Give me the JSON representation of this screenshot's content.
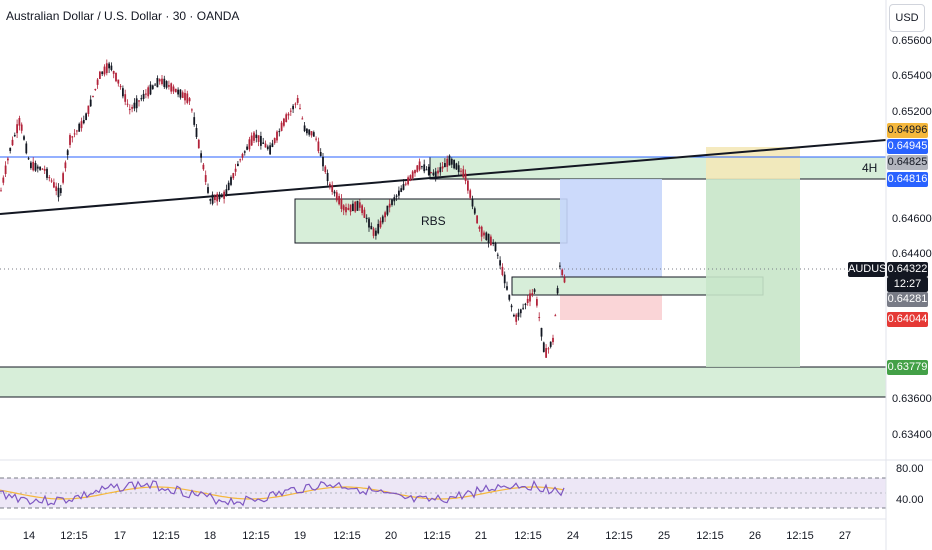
{
  "header": {
    "title": "Australian Dollar / U.S. Dollar · 30 · OANDA",
    "currency": "USD"
  },
  "price_axis": {
    "labels": [
      "0.65600",
      "0.65400",
      "0.65200",
      "0.64600",
      "0.64400",
      "0.63600",
      "0.63400"
    ]
  },
  "tags": {
    "t1": {
      "text": "0.64996",
      "bg": "#f5b83d",
      "fg": "#131722"
    },
    "t2": {
      "text": "0.64945",
      "bg": "#2962ff",
      "fg": "#ffffff"
    },
    "t3": {
      "text": "0.64825",
      "bg": "#b2b5be",
      "fg": "#131722"
    },
    "t4": {
      "text": "0.64816",
      "bg": "#2962ff",
      "fg": "#ffffff"
    },
    "t5": {
      "text": "0.64322",
      "bg": "#131722",
      "fg": "#ffffff"
    },
    "t6": {
      "text": "12:27",
      "bg": "#131722",
      "fg": "#ffffff"
    },
    "t7": {
      "text": "0.64281",
      "bg": "#787b86",
      "fg": "#ffffff"
    },
    "t8": {
      "text": "0.64044",
      "bg": "#e53935",
      "fg": "#ffffff"
    },
    "t9": {
      "text": "0.63779",
      "bg": "#43a047",
      "fg": "#ffffff"
    }
  },
  "symbol_tag": "AUDUSD",
  "annotations": {
    "rbs": "RBS",
    "four_h": "4H"
  },
  "time_axis": [
    "14",
    "12:15",
    "17",
    "12:15",
    "18",
    "12:15",
    "19",
    "12:15",
    "20",
    "12:15",
    "21",
    "12:15",
    "24",
    "12:15",
    "25",
    "12:15",
    "26",
    "12:15",
    "27"
  ],
  "rsi_axis": [
    "80.00",
    "40.00"
  ],
  "colors": {
    "up": "#131722",
    "down": "#b2233a",
    "zone": "#d7eed9",
    "blue_zone": "#c6d6fb",
    "red_zone": "#f9d0d3",
    "green_zone": "#c8e6c9",
    "yellow_zone": "#f4e8b8",
    "blue_line": "#2962ff",
    "rsi_line": "#7e57c2",
    "rsi_ma": "#f5b83d",
    "rsi_band": "#ede7f6"
  }
}
